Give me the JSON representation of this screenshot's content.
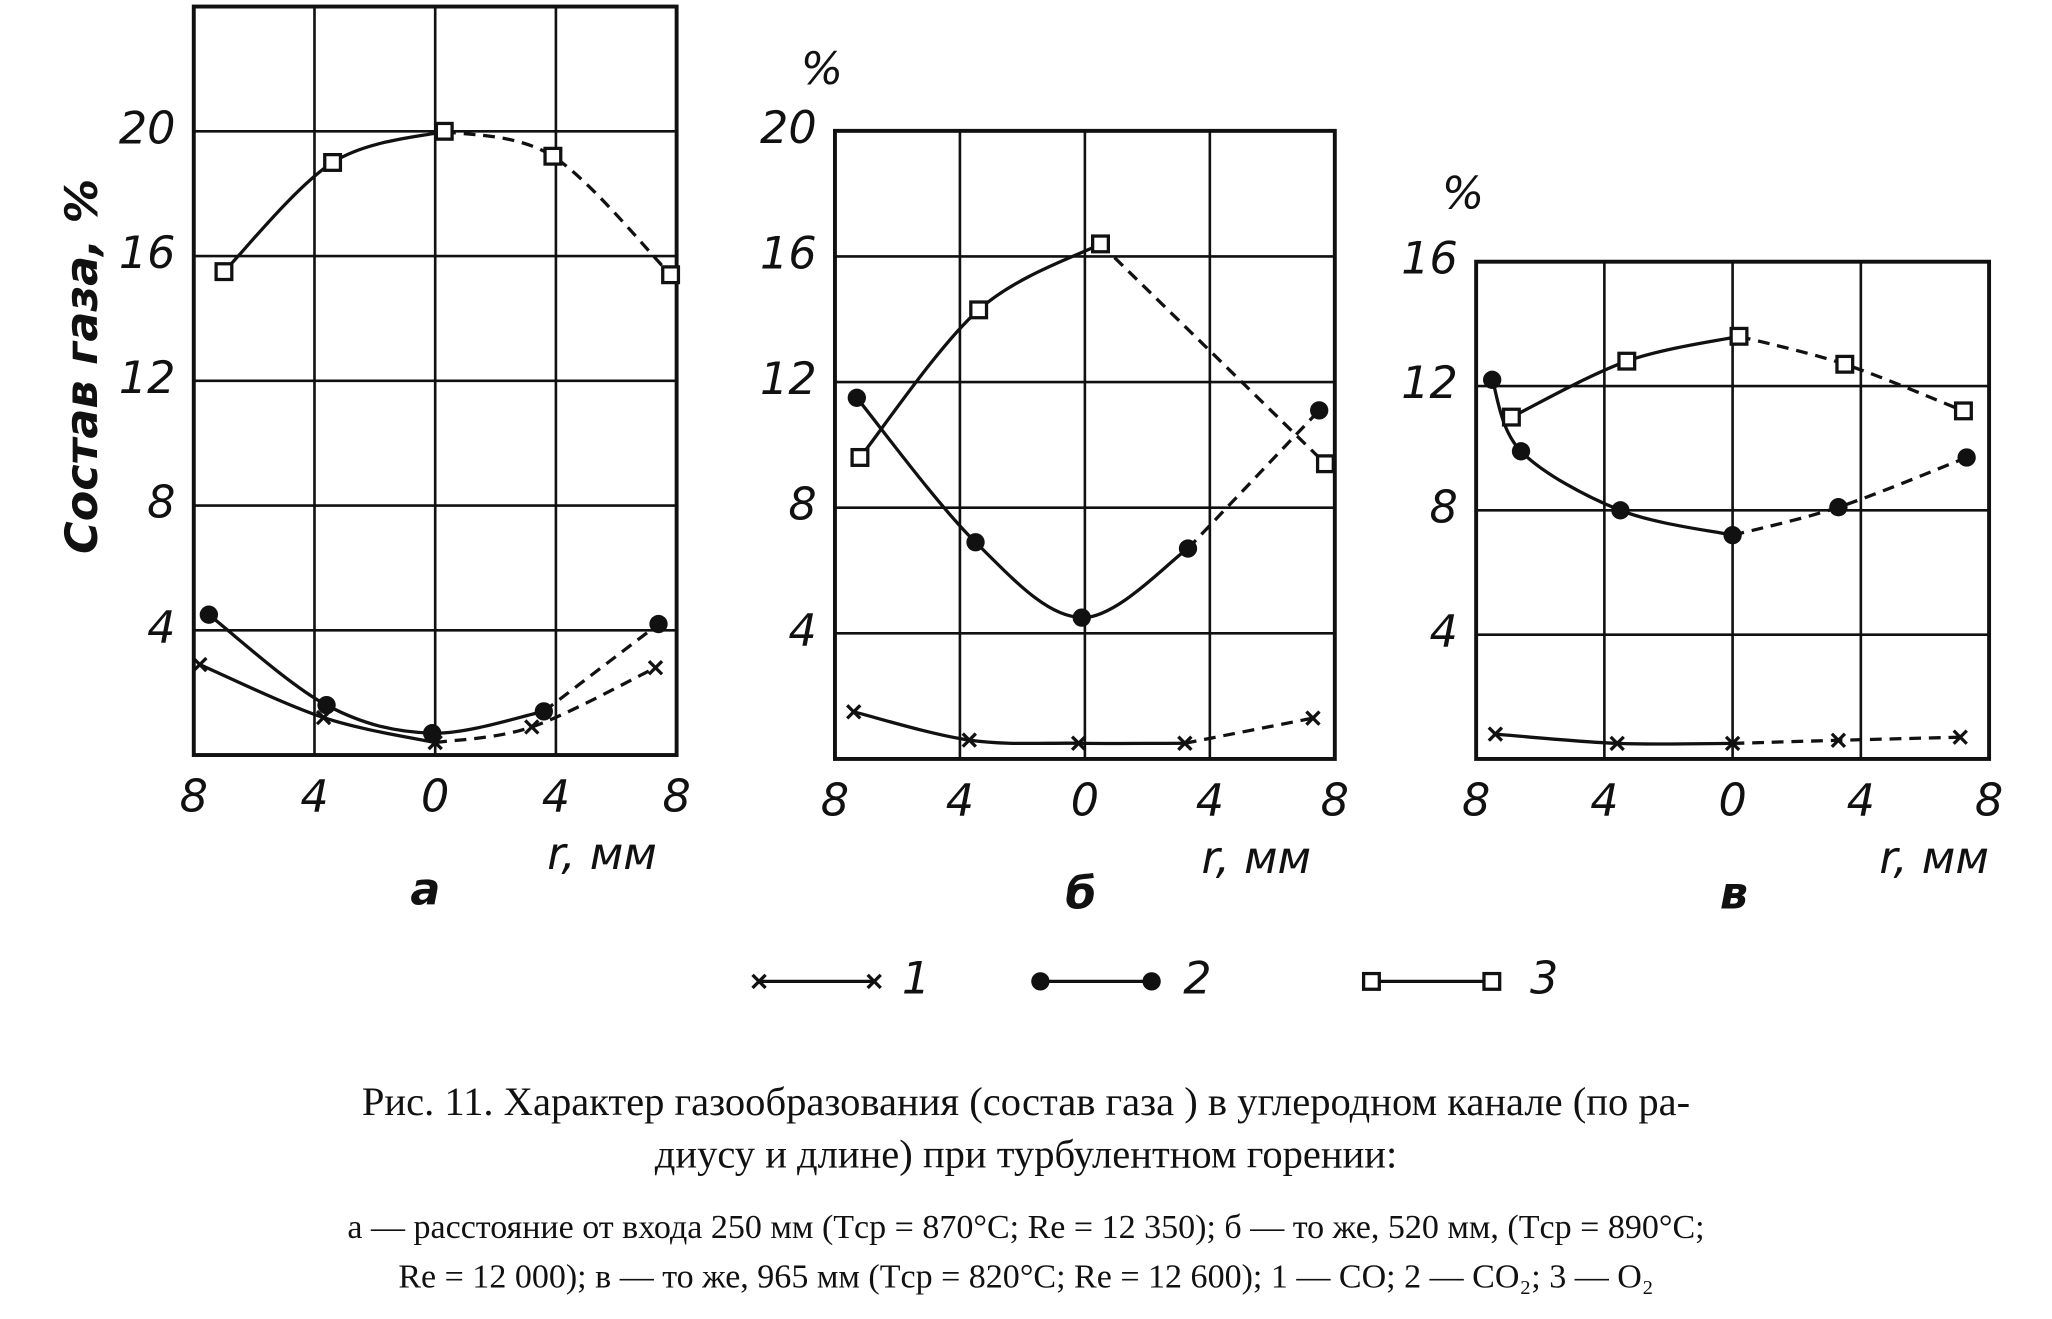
{
  "chart_data": [
    {
      "type": "line",
      "y_label": "Состав газа, %",
      "x_label": "r, мм",
      "panel_label": "а",
      "xlim": [
        -8,
        8
      ],
      "ylim": [
        0,
        24
      ],
      "xticks": [
        {
          "value": -8,
          "label": "8"
        },
        {
          "value": -4,
          "label": "4"
        },
        0,
        4,
        8
      ],
      "yticks": [
        4,
        8,
        12,
        16,
        20
      ],
      "grid": true,
      "series": [
        {
          "marker": "x",
          "color": "#111",
          "x": [
            -7.8,
            -3.7,
            0,
            3.2,
            7.3
          ],
          "values": [
            2.9,
            1.2,
            0.4,
            0.9,
            2.8
          ]
        },
        {
          "marker": "dot",
          "color": "#111",
          "x": [
            -7.5,
            -3.6,
            -0.1,
            3.6,
            7.4
          ],
          "values": [
            4.5,
            1.6,
            0.7,
            1.4,
            4.2
          ]
        },
        {
          "marker": "square",
          "color": "#111",
          "x": [
            -7.0,
            -3.4,
            0.3,
            3.9,
            7.8
          ],
          "values": [
            15.5,
            19.0,
            20.0,
            19.2,
            15.4
          ]
        }
      ]
    },
    {
      "type": "line",
      "y_label": "%",
      "x_label": "r, мм",
      "panel_label": "б",
      "xlim": [
        -8,
        8
      ],
      "ylim": [
        0,
        20
      ],
      "xticks": [
        {
          "value": -8,
          "label": "8"
        },
        {
          "value": -4,
          "label": "4"
        },
        0,
        4,
        8
      ],
      "yticks": [
        4,
        8,
        12,
        16,
        20
      ],
      "grid": true,
      "series": [
        {
          "marker": "x",
          "color": "#111",
          "x": [
            -7.4,
            -3.7,
            -0.2,
            3.2,
            7.3
          ],
          "values": [
            1.5,
            0.6,
            0.5,
            0.5,
            1.3
          ]
        },
        {
          "marker": "dot",
          "color": "#111",
          "x": [
            -7.3,
            -3.5,
            -0.1,
            3.3,
            7.5
          ],
          "values": [
            11.5,
            6.9,
            4.5,
            6.7,
            11.1
          ]
        },
        {
          "marker": "square",
          "color": "#111",
          "x": [
            -7.2,
            -3.4,
            0.5,
            7.7
          ],
          "values": [
            9.6,
            14.3,
            16.4,
            9.4
          ]
        }
      ]
    },
    {
      "type": "line",
      "y_label": "%",
      "x_label": "r, мм",
      "panel_label": "в",
      "xlim": [
        -8,
        8
      ],
      "ylim": [
        0,
        16
      ],
      "xticks": [
        {
          "value": -8,
          "label": "8"
        },
        {
          "value": -4,
          "label": "4"
        },
        0,
        4,
        8
      ],
      "yticks": [
        4,
        8,
        12,
        16
      ],
      "grid": true,
      "series": [
        {
          "marker": "x",
          "color": "#111",
          "x": [
            -7.4,
            -3.6,
            0,
            3.3,
            7.1
          ],
          "values": [
            0.8,
            0.5,
            0.5,
            0.6,
            0.7
          ]
        },
        {
          "marker": "dot",
          "color": "#111",
          "x": [
            -7.5,
            -6.6,
            -3.5,
            0,
            3.3,
            7.3
          ],
          "values": [
            12.2,
            9.9,
            8.0,
            7.2,
            8.1,
            9.7
          ]
        },
        {
          "marker": "square",
          "color": "#111",
          "x": [
            -6.9,
            -3.3,
            0.2,
            3.5,
            7.2
          ],
          "values": [
            11.0,
            12.8,
            13.6,
            12.7,
            11.2
          ]
        }
      ]
    }
  ],
  "legend": {
    "items": [
      {
        "label": "1",
        "marker": "x"
      },
      {
        "label": "2",
        "marker": "dot"
      },
      {
        "label": "3",
        "marker": "square"
      }
    ]
  },
  "caption": {
    "lines": [
      "Рис. 11. Характер газообразования (состав газа ) в углеродном канале (по ра-",
      "диусу и длине) при турбулентном горении:",
      "а — расстояние от входа 250 мм (Tср = 870°C; Re = 12 350); б — то же, 520 мм, (Tср = 890°C;",
      "Re = 12 000); в — то же, 965 мм (Tср = 820°C; Re = 12 600); 1 — CO; 2 — CO₂; 3 — O₂"
    ]
  }
}
